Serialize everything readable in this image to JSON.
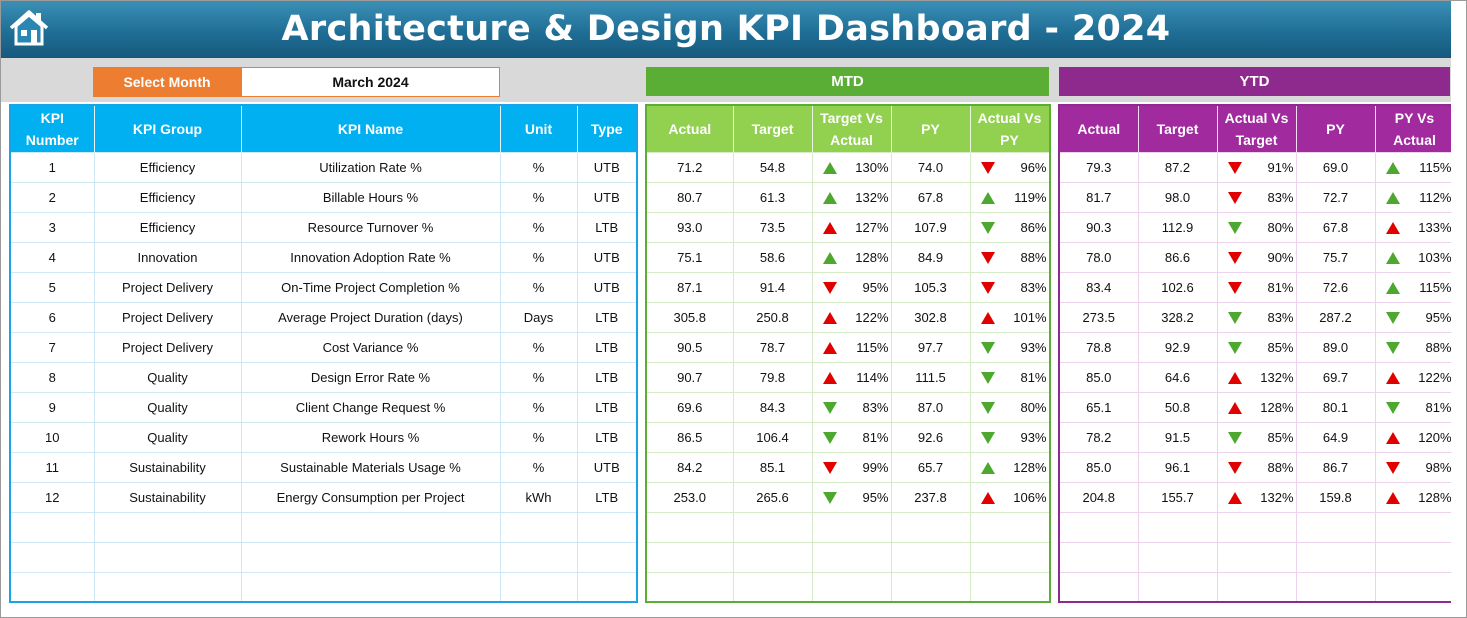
{
  "header": {
    "title": "Architecture & Design KPI Dashboard - 2024",
    "home_icon": "home-icon"
  },
  "selector": {
    "label": "Select Month",
    "value": "March 2024"
  },
  "sections": {
    "mtd": "MTD",
    "ytd": "YTD"
  },
  "columns": {
    "left": [
      "KPI Number",
      "KPI Group",
      "KPI Name",
      "Unit",
      "Type"
    ],
    "mtd": [
      "Actual",
      "Target",
      "Target Vs Actual",
      "PY",
      "Actual Vs PY"
    ],
    "ytd": [
      "Actual",
      "Target",
      "Actual Vs Target",
      "PY",
      "PY Vs Actual"
    ]
  },
  "colors": {
    "up_good": "#4ea72e",
    "down_bad": "#e00000",
    "mtd": "#92d050",
    "ytd": "#a02a9e",
    "kpi": "#00b0f0"
  },
  "rows": [
    {
      "num": "1",
      "group": "Efficiency",
      "name": "Utilization Rate %",
      "unit": "%",
      "type": "UTB",
      "m_actual": "71.2",
      "m_target": "54.8",
      "m_tva": "130%",
      "m_tva_dir": "up-g",
      "m_py": "74.0",
      "m_avp": "96%",
      "m_avp_dir": "dn-r",
      "y_actual": "79.3",
      "y_target": "87.2",
      "y_avt": "91%",
      "y_avt_dir": "dn-r",
      "y_py": "69.0",
      "y_pva": "115%",
      "y_pva_dir": "up-g"
    },
    {
      "num": "2",
      "group": "Efficiency",
      "name": "Billable Hours %",
      "unit": "%",
      "type": "UTB",
      "m_actual": "80.7",
      "m_target": "61.3",
      "m_tva": "132%",
      "m_tva_dir": "up-g",
      "m_py": "67.8",
      "m_avp": "119%",
      "m_avp_dir": "up-g",
      "y_actual": "81.7",
      "y_target": "98.0",
      "y_avt": "83%",
      "y_avt_dir": "dn-r",
      "y_py": "72.7",
      "y_pva": "112%",
      "y_pva_dir": "up-g"
    },
    {
      "num": "3",
      "group": "Efficiency",
      "name": "Resource Turnover %",
      "unit": "%",
      "type": "LTB",
      "m_actual": "93.0",
      "m_target": "73.5",
      "m_tva": "127%",
      "m_tva_dir": "up-r",
      "m_py": "107.9",
      "m_avp": "86%",
      "m_avp_dir": "dn-g",
      "y_actual": "90.3",
      "y_target": "112.9",
      "y_avt": "80%",
      "y_avt_dir": "dn-g",
      "y_py": "67.8",
      "y_pva": "133%",
      "y_pva_dir": "up-r"
    },
    {
      "num": "4",
      "group": "Innovation",
      "name": "Innovation Adoption Rate %",
      "unit": "%",
      "type": "UTB",
      "m_actual": "75.1",
      "m_target": "58.6",
      "m_tva": "128%",
      "m_tva_dir": "up-g",
      "m_py": "84.9",
      "m_avp": "88%",
      "m_avp_dir": "dn-r",
      "y_actual": "78.0",
      "y_target": "86.6",
      "y_avt": "90%",
      "y_avt_dir": "dn-r",
      "y_py": "75.7",
      "y_pva": "103%",
      "y_pva_dir": "up-g"
    },
    {
      "num": "5",
      "group": "Project Delivery",
      "name": "On-Time Project Completion %",
      "unit": "%",
      "type": "UTB",
      "m_actual": "87.1",
      "m_target": "91.4",
      "m_tva": "95%",
      "m_tva_dir": "dn-r",
      "m_py": "105.3",
      "m_avp": "83%",
      "m_avp_dir": "dn-r",
      "y_actual": "83.4",
      "y_target": "102.6",
      "y_avt": "81%",
      "y_avt_dir": "dn-r",
      "y_py": "72.6",
      "y_pva": "115%",
      "y_pva_dir": "up-g"
    },
    {
      "num": "6",
      "group": "Project Delivery",
      "name": "Average Project Duration (days)",
      "unit": "Days",
      "type": "LTB",
      "m_actual": "305.8",
      "m_target": "250.8",
      "m_tva": "122%",
      "m_tva_dir": "up-r",
      "m_py": "302.8",
      "m_avp": "101%",
      "m_avp_dir": "up-r",
      "y_actual": "273.5",
      "y_target": "328.2",
      "y_avt": "83%",
      "y_avt_dir": "dn-g",
      "y_py": "287.2",
      "y_pva": "95%",
      "y_pva_dir": "dn-g"
    },
    {
      "num": "7",
      "group": "Project Delivery",
      "name": "Cost Variance %",
      "unit": "%",
      "type": "LTB",
      "m_actual": "90.5",
      "m_target": "78.7",
      "m_tva": "115%",
      "m_tva_dir": "up-r",
      "m_py": "97.7",
      "m_avp": "93%",
      "m_avp_dir": "dn-g",
      "y_actual": "78.8",
      "y_target": "92.9",
      "y_avt": "85%",
      "y_avt_dir": "dn-g",
      "y_py": "89.0",
      "y_pva": "88%",
      "y_pva_dir": "dn-g"
    },
    {
      "num": "8",
      "group": "Quality",
      "name": "Design Error Rate %",
      "unit": "%",
      "type": "LTB",
      "m_actual": "90.7",
      "m_target": "79.8",
      "m_tva": "114%",
      "m_tva_dir": "up-r",
      "m_py": "111.5",
      "m_avp": "81%",
      "m_avp_dir": "dn-g",
      "y_actual": "85.0",
      "y_target": "64.6",
      "y_avt": "132%",
      "y_avt_dir": "up-r",
      "y_py": "69.7",
      "y_pva": "122%",
      "y_pva_dir": "up-r"
    },
    {
      "num": "9",
      "group": "Quality",
      "name": "Client Change Request %",
      "unit": "%",
      "type": "LTB",
      "m_actual": "69.6",
      "m_target": "84.3",
      "m_tva": "83%",
      "m_tva_dir": "dn-g",
      "m_py": "87.0",
      "m_avp": "80%",
      "m_avp_dir": "dn-g",
      "y_actual": "65.1",
      "y_target": "50.8",
      "y_avt": "128%",
      "y_avt_dir": "up-r",
      "y_py": "80.1",
      "y_pva": "81%",
      "y_pva_dir": "dn-g"
    },
    {
      "num": "10",
      "group": "Quality",
      "name": "Rework Hours %",
      "unit": "%",
      "type": "LTB",
      "m_actual": "86.5",
      "m_target": "106.4",
      "m_tva": "81%",
      "m_tva_dir": "dn-g",
      "m_py": "92.6",
      "m_avp": "93%",
      "m_avp_dir": "dn-g",
      "y_actual": "78.2",
      "y_target": "91.5",
      "y_avt": "85%",
      "y_avt_dir": "dn-g",
      "y_py": "64.9",
      "y_pva": "120%",
      "y_pva_dir": "up-r"
    },
    {
      "num": "11",
      "group": "Sustainability",
      "name": "Sustainable Materials Usage %",
      "unit": "%",
      "type": "UTB",
      "m_actual": "84.2",
      "m_target": "85.1",
      "m_tva": "99%",
      "m_tva_dir": "dn-r",
      "m_py": "65.7",
      "m_avp": "128%",
      "m_avp_dir": "up-g",
      "y_actual": "85.0",
      "y_target": "96.1",
      "y_avt": "88%",
      "y_avt_dir": "dn-r",
      "y_py": "86.7",
      "y_pva": "98%",
      "y_pva_dir": "dn-r"
    },
    {
      "num": "12",
      "group": "Sustainability",
      "name": "Energy Consumption per Project",
      "unit": "kWh",
      "type": "LTB",
      "m_actual": "253.0",
      "m_target": "265.6",
      "m_tva": "95%",
      "m_tva_dir": "dn-g",
      "m_py": "237.8",
      "m_avp": "106%",
      "m_avp_dir": "up-r",
      "y_actual": "204.8",
      "y_target": "155.7",
      "y_avt": "132%",
      "y_avt_dir": "up-r",
      "y_py": "159.8",
      "y_pva": "128%",
      "y_pva_dir": "up-r"
    }
  ]
}
